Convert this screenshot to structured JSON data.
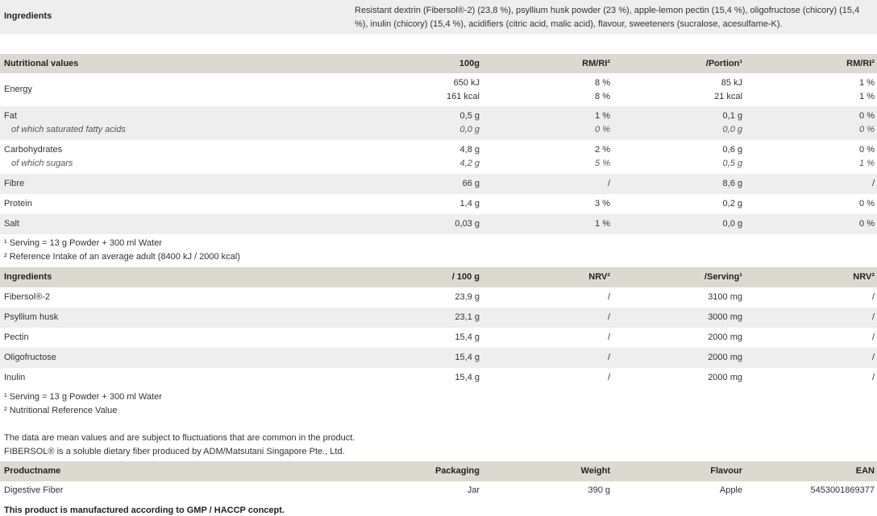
{
  "ingredients": {
    "label": "Ingredients",
    "text": "Resistant dextrin (Fibersol®-2) (23,8 %), psyllium husk powder (23 %), apple-lemon pectin (15,4 %), oligofructose (chicory) (15,4 %), inulin (chicory) (15,4 %), acidifiers (citric acid, malic acid), flavour, sweeteners (sucralose, acesulfame-K)."
  },
  "nutrition": {
    "headers": [
      "Nutritional values",
      "100g",
      "RM/RI²",
      "/Portion¹",
      "RM/RI²"
    ],
    "rows": [
      {
        "name": "Energy",
        "v": [
          [
            "650 kJ",
            "161 kcal"
          ],
          [
            "8 %",
            "8 %"
          ],
          [
            "85 kJ",
            "21 kcal"
          ],
          [
            "1 %",
            "1 %"
          ]
        ]
      },
      {
        "name": "Fat",
        "sub": "of which saturated fatty acids",
        "v": [
          [
            "0,5 g",
            "0,0 g"
          ],
          [
            "1 %",
            "0 %"
          ],
          [
            "0,1 g",
            "0,0 g"
          ],
          [
            "0 %",
            "0 %"
          ]
        ]
      },
      {
        "name": "Carbohydrates",
        "sub": "of which sugars",
        "v": [
          [
            "4,8 g",
            "4,2 g"
          ],
          [
            "2 %",
            "5 %"
          ],
          [
            "0,6 g",
            "0,5 g"
          ],
          [
            "0 %",
            "1 %"
          ]
        ]
      },
      {
        "name": "Fibre",
        "v": [
          [
            "66 g"
          ],
          [
            "/"
          ],
          [
            "8,6 g"
          ],
          [
            "/"
          ]
        ]
      },
      {
        "name": "Protein",
        "v": [
          [
            "1,4 g"
          ],
          [
            "3 %"
          ],
          [
            "0,2 g"
          ],
          [
            "0 %"
          ]
        ]
      },
      {
        "name": "Salt",
        "v": [
          [
            "0,03 g"
          ],
          [
            "1 %"
          ],
          [
            "0,0 g"
          ],
          [
            "0 %"
          ]
        ]
      }
    ],
    "footnotes": [
      "¹ Serving = 13 g Powder + 300 ml Water",
      "² Reference Intake of an average adult (8400 kJ / 2000 kcal)"
    ]
  },
  "active": {
    "headers": [
      "Ingredients",
      "/ 100 g",
      "NRV²",
      "/Serving¹",
      "NRV²"
    ],
    "rows": [
      [
        "Fibersol®-2",
        "23,9 g",
        "/",
        "3100 mg",
        "/"
      ],
      [
        "Psyllium husk",
        "23,1 g",
        "/",
        "3000 mg",
        "/"
      ],
      [
        "Pectin",
        "15,4 g",
        "/",
        "2000 mg",
        "/"
      ],
      [
        "Oligofructose",
        "15,4 g",
        "/",
        "2000 mg",
        "/"
      ],
      [
        "Inulin",
        "15,4 g",
        "/",
        "2000 mg",
        "/"
      ]
    ],
    "footnotes": [
      "¹ Serving = 13 g Powder + 300 ml Water",
      "² Nutritional Reference Value"
    ]
  },
  "notes": [
    "The data are mean values and are subject to fluctuations that are common in the product.",
    "FIBERSOL® is a soluble dietary fiber produced by ADM/Matsutani Singapore Pte., Ltd."
  ],
  "product": {
    "headers": [
      "Productname",
      "Packaging",
      "Weight",
      "Flavour",
      "EAN"
    ],
    "row": [
      "Digestive Fiber",
      "Jar",
      "390 g",
      "Apple",
      "5453001869377"
    ]
  },
  "gmp": "This product is manufactured according to GMP / HACCP concept."
}
